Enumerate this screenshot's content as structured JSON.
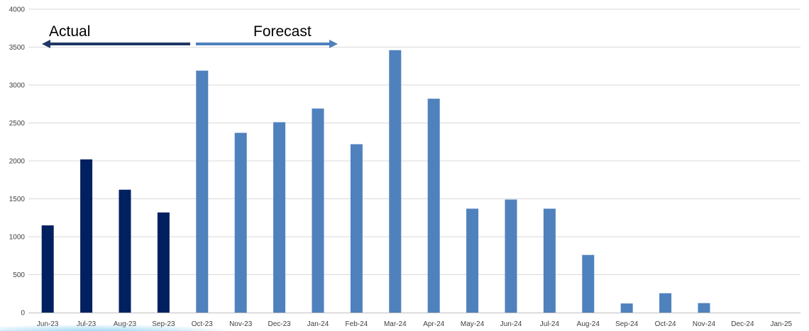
{
  "colors": {
    "actual": "#002060",
    "forecast": "#4F81BD",
    "actual_arrow": "#1F3864",
    "forecast_arrow": "#4F81BD",
    "gridline": "#D9D9D9",
    "axis": "#BFBFBF",
    "tick_text": "#404040"
  },
  "chart_data": {
    "type": "bar",
    "title": "",
    "xlabel": "",
    "ylabel": "",
    "ylim": [
      0,
      4000
    ],
    "yticks": [
      0,
      500,
      1000,
      1500,
      2000,
      2500,
      3000,
      3500,
      4000
    ],
    "grid": true,
    "legend": "none",
    "categories": [
      "Jun-23",
      "Jul-23",
      "Aug-23",
      "Sep-23",
      "Oct-23",
      "Nov-23",
      "Dec-23",
      "Jan-24",
      "Feb-24",
      "Mar-24",
      "Apr-24",
      "May-24",
      "Jun-24",
      "Jul-24",
      "Aug-24",
      "Sep-24",
      "Oct-24",
      "Nov-24",
      "Dec-24",
      "Jan-25"
    ],
    "values": [
      1150,
      2020,
      1620,
      1320,
      3190,
      2370,
      2510,
      2690,
      2220,
      3460,
      2820,
      1370,
      1490,
      1370,
      760,
      120,
      255,
      125,
      0,
      0
    ],
    "segments": [
      "actual",
      "actual",
      "actual",
      "actual",
      "forecast",
      "forecast",
      "forecast",
      "forecast",
      "forecast",
      "forecast",
      "forecast",
      "forecast",
      "forecast",
      "forecast",
      "forecast",
      "forecast",
      "forecast",
      "forecast",
      "forecast",
      "forecast"
    ],
    "annotations": [
      {
        "id": "actual",
        "text": "Actual",
        "direction": "left"
      },
      {
        "id": "forecast",
        "text": "Forecast",
        "direction": "right"
      }
    ]
  }
}
